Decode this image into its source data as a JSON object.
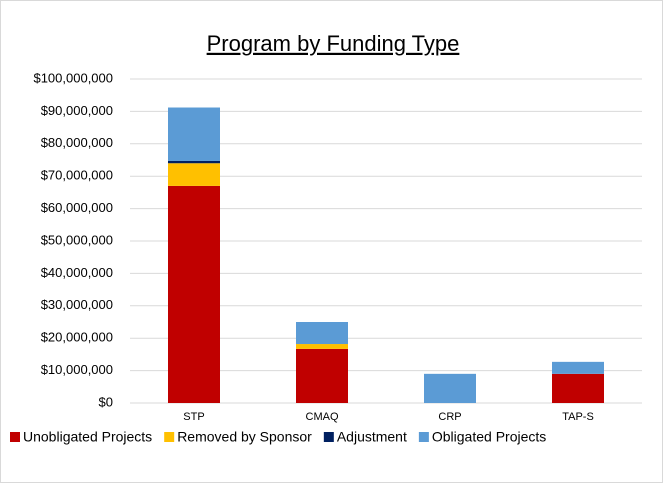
{
  "chart_data": {
    "type": "stacked_bar",
    "title": "Program by Funding Type",
    "categories": [
      "STP",
      "CMAQ",
      "CRP",
      "TAP-S"
    ],
    "series": [
      {
        "name": "Unobligated Projects",
        "color": "#c00000",
        "values": [
          67000000,
          16700000,
          0,
          9000000
        ]
      },
      {
        "name": "Removed by Sponsor",
        "color": "#ffc000",
        "values": [
          7000000,
          1500000,
          0,
          0
        ]
      },
      {
        "name": "Adjustment",
        "color": "#002060",
        "values": [
          700000,
          0,
          0,
          0
        ]
      },
      {
        "name": "Obligated Projects",
        "color": "#5b9bd5",
        "values": [
          16500000,
          6800000,
          9000000,
          3700000
        ]
      }
    ],
    "ylim": [
      0,
      100000000
    ],
    "yticks": [
      {
        "value": 0,
        "label": "$0"
      },
      {
        "value": 10000000,
        "label": "$10,000,000"
      },
      {
        "value": 20000000,
        "label": "$20,000,000"
      },
      {
        "value": 30000000,
        "label": "$30,000,000"
      },
      {
        "value": 40000000,
        "label": "$40,000,000"
      },
      {
        "value": 50000000,
        "label": "$50,000,000"
      },
      {
        "value": 60000000,
        "label": "$60,000,000"
      },
      {
        "value": 70000000,
        "label": "$70,000,000"
      },
      {
        "value": 80000000,
        "label": "$80,000,000"
      },
      {
        "value": 90000000,
        "label": "$90,000,000"
      },
      {
        "value": 100000000,
        "label": "$100,000,000"
      }
    ],
    "grid": true,
    "legend": "bottom"
  }
}
